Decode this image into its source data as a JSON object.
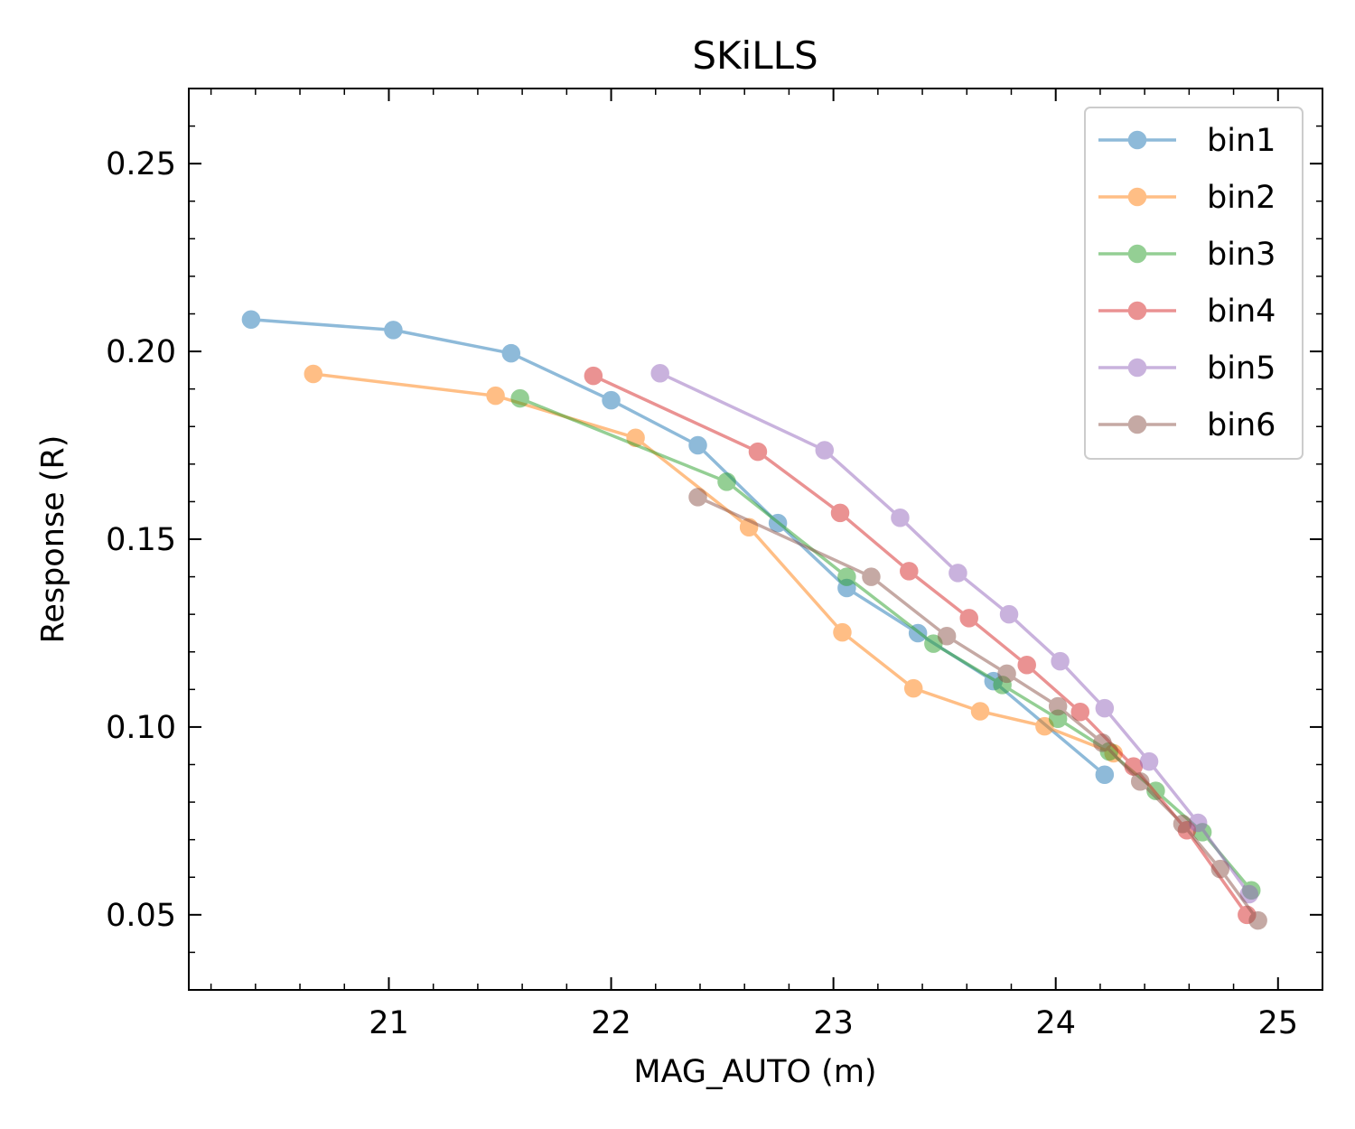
{
  "chart_data": {
    "type": "line",
    "title": "SKiLLS",
    "xlabel": "MAG_AUTO (m)",
    "ylabel": "Response (R)",
    "xlim": [
      20.1,
      25.2
    ],
    "ylim": [
      0.03,
      0.27
    ],
    "xticks": [
      21,
      22,
      23,
      24,
      25
    ],
    "xtick_labels": [
      "21",
      "22",
      "23",
      "24",
      "25"
    ],
    "yticks": [
      0.05,
      0.1,
      0.15,
      0.2,
      0.25
    ],
    "ytick_labels": [
      "0.05",
      "0.10",
      "0.15",
      "0.20",
      "0.25"
    ],
    "legend_position": "top-right",
    "series": [
      {
        "name": "bin1",
        "color": "#1f77b4",
        "x": [
          20.38,
          21.02,
          21.55,
          22.0,
          22.39,
          22.75,
          23.06,
          23.38,
          23.72,
          24.22
        ],
        "y": [
          0.2085,
          0.2057,
          0.1995,
          0.187,
          0.175,
          0.1543,
          0.137,
          0.125,
          0.1122,
          0.0873
        ]
      },
      {
        "name": "bin2",
        "color": "#ff7f0e",
        "x": [
          20.66,
          21.48,
          22.11,
          22.62,
          23.04,
          23.36,
          23.66,
          23.95,
          24.26
        ],
        "y": [
          0.194,
          0.1882,
          0.177,
          0.1532,
          0.1252,
          0.1103,
          0.1042,
          0.1002,
          0.093
        ]
      },
      {
        "name": "bin3",
        "color": "#2ca02c",
        "x": [
          21.59,
          22.52,
          23.06,
          23.45,
          23.76,
          24.01,
          24.24,
          24.45,
          24.66,
          24.88
        ],
        "y": [
          0.1875,
          0.1653,
          0.14,
          0.1222,
          0.1112,
          0.1022,
          0.0935,
          0.083,
          0.072,
          0.0565
        ]
      },
      {
        "name": "bin4",
        "color": "#d62728",
        "x": [
          21.92,
          22.66,
          23.03,
          23.34,
          23.61,
          23.87,
          24.11,
          24.35,
          24.59,
          24.86
        ],
        "y": [
          0.1935,
          0.1733,
          0.157,
          0.1415,
          0.129,
          0.1165,
          0.104,
          0.0895,
          0.0725,
          0.05
        ]
      },
      {
        "name": "bin5",
        "color": "#9467bd",
        "x": [
          22.22,
          22.96,
          23.3,
          23.56,
          23.79,
          24.02,
          24.22,
          24.42,
          24.64,
          24.87
        ],
        "y": [
          0.1942,
          0.1737,
          0.1557,
          0.141,
          0.13,
          0.1175,
          0.105,
          0.0908,
          0.0745,
          0.0555
        ]
      },
      {
        "name": "bin6",
        "color": "#8c564b",
        "x": [
          22.39,
          23.17,
          23.51,
          23.78,
          24.01,
          24.21,
          24.38,
          24.57,
          24.74,
          24.91
        ],
        "y": [
          0.1612,
          0.14,
          0.1242,
          0.1142,
          0.1055,
          0.0958,
          0.0855,
          0.0742,
          0.0622,
          0.0485
        ]
      }
    ]
  }
}
